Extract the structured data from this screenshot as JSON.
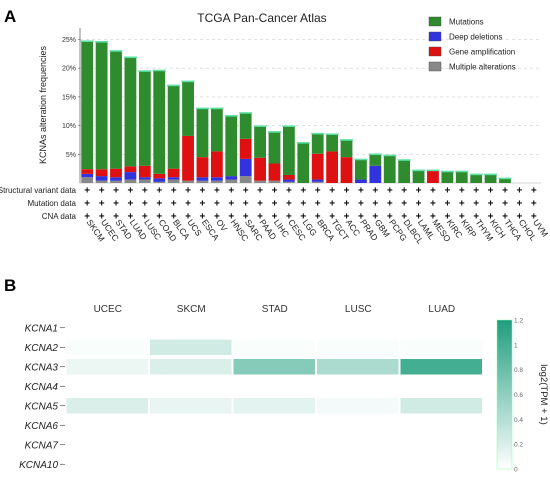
{
  "panels": {
    "a": "A",
    "b": "B"
  },
  "chart_data": [
    {
      "type": "bar",
      "title": "TCGA Pan-Cancer Atlas",
      "ylabel": "KCNAs alteration frequencies",
      "ylim": [
        0,
        27
      ],
      "yticks": [
        "5%",
        "10%",
        "15%",
        "20%",
        "25%"
      ],
      "ytick_values": [
        5,
        10,
        15,
        20,
        25
      ],
      "categories": [
        "SKCM",
        "UCEC",
        "STAD",
        "LUAD",
        "LUSC",
        "COAD",
        "BLCA",
        "UCS",
        "ESCA",
        "OV",
        "HNSC",
        "SARC",
        "PAAD",
        "LIHC",
        "CESC",
        "LGG",
        "BRCA",
        "TGCT",
        "ACC",
        "PRAD",
        "GBM",
        "PCPG",
        "DLBCL",
        "LAML",
        "MESO",
        "KIRC",
        "KIRP",
        "THYM",
        "KICH",
        "THCA",
        "CHOL",
        "UVM"
      ],
      "series": [
        {
          "name": "Mutations",
          "color": "#2e8b2e",
          "values": [
            22.3,
            22.2,
            20.5,
            19.0,
            16.5,
            18.0,
            14.5,
            9.5,
            8.5,
            7.5,
            10.5,
            4.5,
            5.5,
            5.5,
            8.5,
            7.0,
            3.5,
            3.0,
            3.0,
            3.5,
            2.0,
            4.8,
            4.0,
            2.2,
            0,
            2.0,
            2.0,
            1.5,
            1.5,
            0.8,
            0,
            0
          ]
        },
        {
          "name": "Deep deletions",
          "color": "#3333dd",
          "values": [
            0.6,
            0.8,
            0.6,
            1.3,
            0.4,
            0.6,
            0.4,
            0,
            0.6,
            0.6,
            0.6,
            3.0,
            0,
            0,
            0.4,
            0,
            0.4,
            0,
            0,
            0.6,
            3.0,
            0,
            0,
            0,
            0,
            0,
            0,
            0,
            0,
            0,
            0,
            0
          ]
        },
        {
          "name": "Gene amplification",
          "color": "#dd1111",
          "values": [
            0.8,
            1.2,
            1.5,
            1.0,
            2.0,
            0.8,
            1.5,
            7.8,
            3.5,
            4.5,
            0,
            3.5,
            4.0,
            3.0,
            0.8,
            0,
            4.5,
            5.5,
            4.5,
            0,
            0,
            0,
            0,
            0,
            2.2,
            0,
            0,
            0,
            0,
            0,
            0,
            0
          ]
        },
        {
          "name": "Multiple alterations",
          "color": "#888888",
          "values": [
            1.0,
            0.4,
            0.4,
            0.6,
            0.6,
            0.2,
            0.6,
            0.4,
            0.4,
            0.4,
            0.6,
            1.2,
            0.4,
            0.4,
            0.2,
            0,
            0.2,
            0,
            0,
            0,
            0,
            0,
            0,
            0,
            0,
            0,
            0,
            0,
            0,
            0,
            0,
            0
          ]
        }
      ],
      "legend_position": "top-right",
      "tracks": [
        "Structural variant data",
        "Mutation data",
        "CNA data"
      ],
      "track_symbol": "+"
    },
    {
      "type": "heatmap",
      "columns": [
        "UCEC",
        "SKCM",
        "STAD",
        "LUSC",
        "LUAD"
      ],
      "rows": [
        "KCNA1",
        "KCNA2",
        "KCNA3",
        "KCNA4",
        "KCNA5",
        "KCNA6",
        "KCNA7",
        "KCNA10"
      ],
      "values": [
        [
          0,
          0,
          0,
          0,
          0
        ],
        [
          0.03,
          0.25,
          0.03,
          0.03,
          0.03
        ],
        [
          0.1,
          0.2,
          0.65,
          0.45,
          1.0
        ],
        [
          0,
          0,
          0,
          0,
          0
        ],
        [
          0.2,
          0.12,
          0.15,
          0.06,
          0.25
        ],
        [
          0,
          0,
          0,
          0,
          0
        ],
        [
          0,
          0,
          0,
          0,
          0
        ],
        [
          0,
          0,
          0,
          0,
          0
        ]
      ],
      "colorbar": {
        "ticks": [
          "0",
          "0.2",
          "0.4",
          "0.6",
          "0.8",
          "1",
          "1.2"
        ],
        "range": [
          0,
          1.2
        ],
        "title": "log2(TPM + 1)",
        "color_low": "#ffffff",
        "color_high": "#1f9e7d"
      }
    }
  ]
}
